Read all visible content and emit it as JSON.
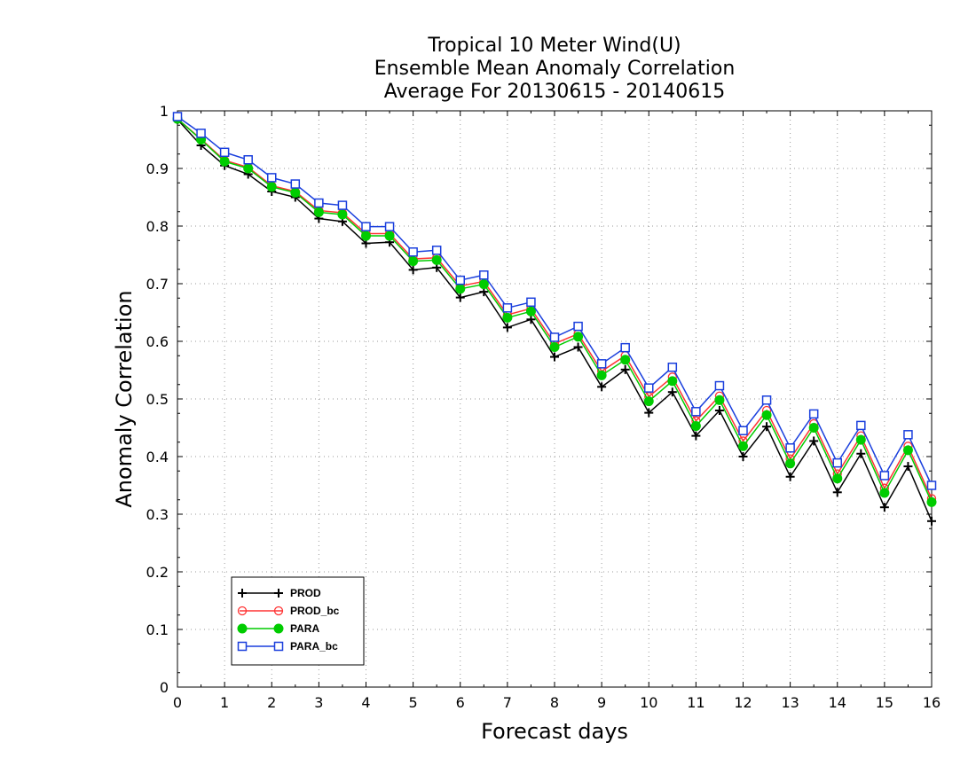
{
  "chart_data": {
    "type": "line",
    "title": [
      "Tropical 10 Meter Wind(U)",
      "Ensemble Mean Anomaly Correlation",
      "Average For 20130615 - 20140615"
    ],
    "xlabel": "Forecast days",
    "ylabel": "Anomaly Correlation",
    "xlim": [
      0,
      16
    ],
    "ylim": [
      0,
      1
    ],
    "x_ticks": [
      "0",
      "1",
      "2",
      "3",
      "4",
      "5",
      "6",
      "7",
      "8",
      "9",
      "10",
      "11",
      "12",
      "13",
      "14",
      "15",
      "16"
    ],
    "y_ticks": [
      "0",
      "0.1",
      "0.2",
      "0.3",
      "0.4",
      "0.5",
      "0.6",
      "0.7",
      "0.8",
      "0.9",
      "1"
    ],
    "grid": true,
    "legend_position": "bottom-left",
    "x": [
      0,
      0.5,
      1,
      1.5,
      2,
      2.5,
      3,
      3.5,
      4,
      4.5,
      5,
      5.5,
      6,
      6.5,
      7,
      7.5,
      8,
      8.5,
      9,
      9.5,
      10,
      10.5,
      11,
      11.5,
      12,
      12.5,
      13,
      13.5,
      14,
      14.5,
      15,
      15.5,
      16
    ],
    "series": [
      {
        "name": "PROD",
        "color": "#000000",
        "marker": "plus",
        "values": [
          0.985,
          0.94,
          0.905,
          0.89,
          0.86,
          0.85,
          0.813,
          0.808,
          0.77,
          0.772,
          0.724,
          0.728,
          0.676,
          0.686,
          0.624,
          0.638,
          0.573,
          0.59,
          0.521,
          0.551,
          0.476,
          0.512,
          0.436,
          0.48,
          0.4,
          0.452,
          0.365,
          0.427,
          0.338,
          0.405,
          0.312,
          0.383,
          0.288
        ]
      },
      {
        "name": "PROD_bc",
        "color": "#ff3333",
        "marker": "open-circle",
        "values": [
          0.986,
          0.951,
          0.914,
          0.902,
          0.87,
          0.86,
          0.827,
          0.823,
          0.787,
          0.787,
          0.743,
          0.745,
          0.696,
          0.704,
          0.646,
          0.657,
          0.596,
          0.613,
          0.548,
          0.575,
          0.504,
          0.538,
          0.462,
          0.505,
          0.427,
          0.48,
          0.396,
          0.457,
          0.37,
          0.436,
          0.345,
          0.418,
          0.327
        ]
      },
      {
        "name": "PARA",
        "color": "#00cc00",
        "marker": "filled-circle",
        "values": [
          0.986,
          0.95,
          0.912,
          0.9,
          0.868,
          0.858,
          0.824,
          0.82,
          0.783,
          0.783,
          0.739,
          0.741,
          0.691,
          0.699,
          0.641,
          0.652,
          0.59,
          0.608,
          0.541,
          0.568,
          0.496,
          0.531,
          0.453,
          0.498,
          0.418,
          0.472,
          0.388,
          0.45,
          0.362,
          0.429,
          0.337,
          0.411,
          0.321
        ]
      },
      {
        "name": "PARA_bc",
        "color": "#1a3fdd",
        "marker": "open-square",
        "values": [
          0.99,
          0.961,
          0.928,
          0.915,
          0.884,
          0.873,
          0.84,
          0.836,
          0.799,
          0.799,
          0.755,
          0.758,
          0.706,
          0.715,
          0.658,
          0.668,
          0.607,
          0.626,
          0.561,
          0.589,
          0.519,
          0.555,
          0.478,
          0.523,
          0.445,
          0.498,
          0.415,
          0.474,
          0.389,
          0.454,
          0.367,
          0.438,
          0.35
        ]
      }
    ]
  }
}
